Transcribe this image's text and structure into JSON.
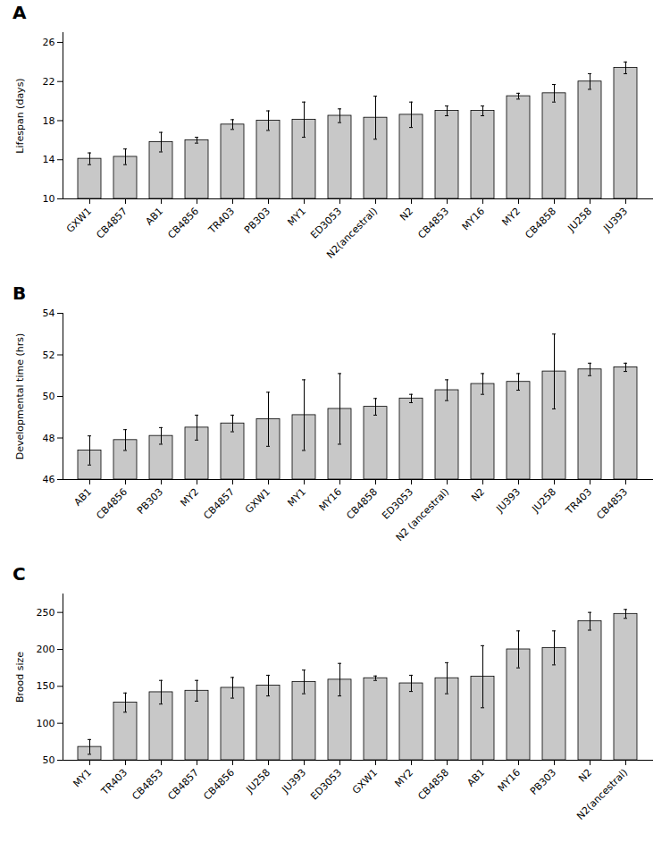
{
  "chart_data": [
    {
      "type": "bar",
      "title": "A",
      "ylabel": "Lifespan (days)",
      "categories": [
        "GXW1",
        "CB4857",
        "AB1",
        "CB4856",
        "TR403",
        "PB303",
        "MY1",
        "ED3053",
        "N2(ancestral)",
        "N2",
        "CB4853",
        "MY16",
        "MY2",
        "CB4858",
        "JU258",
        "JU393"
      ],
      "values": [
        14.1,
        14.3,
        15.8,
        16.0,
        17.6,
        18.0,
        18.1,
        18.5,
        18.3,
        18.6,
        19.0,
        19.0,
        20.5,
        20.8,
        22.0,
        23.4
      ],
      "errors": [
        0.6,
        0.8,
        1.0,
        0.3,
        0.5,
        1.0,
        1.8,
        0.7,
        2.2,
        1.3,
        0.5,
        0.5,
        0.3,
        0.9,
        0.8,
        0.6
      ],
      "color": "#c8c8c8",
      "ylim": [
        10,
        27
      ],
      "yticks": [
        10,
        14,
        18,
        22,
        26
      ],
      "grid": false
    },
    {
      "type": "bar",
      "title": "B",
      "ylabel": "Developmental time (hrs)",
      "categories": [
        "AB1",
        "CB4856",
        "PB303",
        "MY2",
        "CB4857",
        "GXW1",
        "MY1",
        "MY16",
        "CB4858",
        "ED3053",
        "N2 (ancestral)",
        "N2",
        "JU393",
        "JU258",
        "TR403",
        "CB4853"
      ],
      "values": [
        47.4,
        47.9,
        48.1,
        48.5,
        48.7,
        48.9,
        49.1,
        49.4,
        49.5,
        49.9,
        50.3,
        50.6,
        50.7,
        51.2,
        51.3,
        51.4
      ],
      "errors": [
        0.7,
        0.5,
        0.4,
        0.6,
        0.4,
        1.3,
        1.7,
        1.7,
        0.4,
        0.2,
        0.5,
        0.5,
        0.4,
        1.8,
        0.3,
        0.2
      ],
      "color": "#c8c8c8",
      "ylim": [
        46,
        54
      ],
      "yticks": [
        46,
        48,
        50,
        52,
        54
      ],
      "grid": false
    },
    {
      "type": "bar",
      "title": "C",
      "ylabel": "Brood size",
      "categories": [
        "MY1",
        "TR403",
        "CB4853",
        "CB4857",
        "CB4856",
        "JU258",
        "JU393",
        "ED3053",
        "GXW1",
        "MY2",
        "CB4858",
        "AB1",
        "MY16",
        "PB303",
        "N2",
        "N2(ancestral)"
      ],
      "values": [
        68,
        128,
        142,
        144,
        148,
        151,
        156,
        159,
        161,
        154,
        161,
        163,
        200,
        202,
        238,
        248
      ],
      "errors": [
        10,
        13,
        16,
        14,
        14,
        14,
        16,
        22,
        3,
        11,
        21,
        42,
        25,
        23,
        12,
        6
      ],
      "color": "#c8c8c8",
      "ylim": [
        50,
        275
      ],
      "yticks": [
        50,
        100,
        150,
        200,
        250
      ],
      "grid": false
    }
  ]
}
